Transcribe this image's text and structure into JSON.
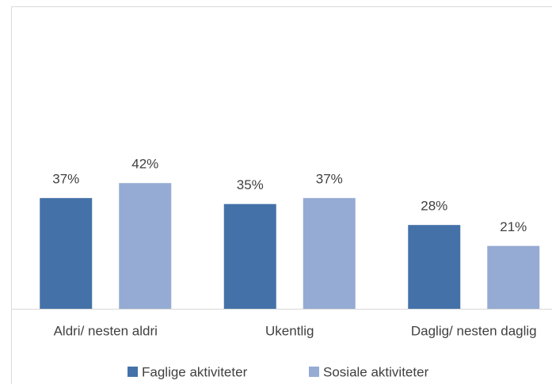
{
  "chart_data": {
    "type": "bar",
    "categories": [
      "Aldri/ nesten aldri",
      "Ukentlig",
      "Daglig/ nesten daglig"
    ],
    "series": [
      {
        "name": "Faglige aktiviteter",
        "color": "#4472a8",
        "values": [
          37,
          35,
          28
        ],
        "value_labels": [
          "37%",
          "35%",
          "28%"
        ]
      },
      {
        "name": "Sosiale aktiviteter",
        "color": "#95abd3",
        "values": [
          42,
          37,
          21
        ],
        "value_labels": [
          "42%",
          "37%",
          "21%"
        ]
      }
    ]
  }
}
